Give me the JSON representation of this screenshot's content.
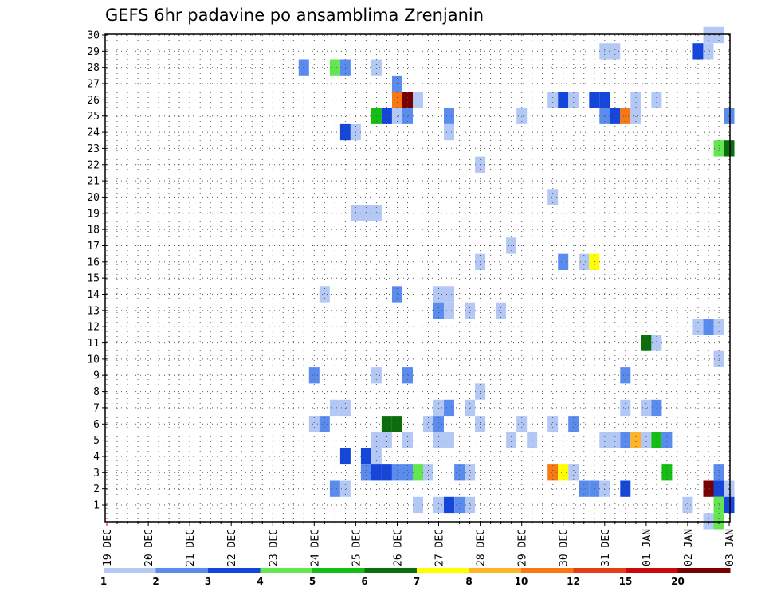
{
  "chart_data": {
    "type": "heatmap",
    "title": "GEFS 6hr padavine po ansamblima Zrenjanin",
    "xlabel": "",
    "ylabel": "",
    "x_ticks": [
      "19 DEC",
      "20 DEC",
      "21 DEC",
      "22 DEC",
      "23 DEC",
      "24 DEC",
      "25 DEC",
      "26 DEC",
      "27 DEC",
      "28 DEC",
      "29 DEC",
      "30 DEC",
      "31 DEC",
      "01 JAN",
      "02 JAN",
      "03 JAN"
    ],
    "x_range_steps": [
      0,
      60
    ],
    "y_ticks": [
      1,
      2,
      3,
      4,
      5,
      6,
      7,
      8,
      9,
      10,
      11,
      12,
      13,
      14,
      15,
      16,
      17,
      18,
      19,
      20,
      21,
      22,
      23,
      24,
      25,
      26,
      27,
      28,
      29,
      30
    ],
    "y_range": [
      0,
      30
    ],
    "colorbar": {
      "labels": [
        "1",
        "2",
        "3",
        "4",
        "5",
        "6",
        "7",
        "8",
        "10",
        "12",
        "15",
        "20"
      ],
      "colors": [
        "#b4c8f5",
        "#5a8cf0",
        "#1446dc",
        "#64e650",
        "#14be14",
        "#0a6e0a",
        "#ffff00",
        "#ffb428",
        "#fa7814",
        "#e63c14",
        "#c80a0a",
        "#780000"
      ]
    },
    "cell_value_unit": "mm / 6h (class index into colorbar)",
    "cells_note": "each cell: step index from 19 DEC 00z (6h steps), ensemble member (1-30), class index (0=1-2 ... 11=>=20)",
    "cells": [
      {
        "t": 58,
        "m": 30,
        "c": 0
      },
      {
        "t": 59,
        "m": 30,
        "c": 0
      },
      {
        "t": 48,
        "m": 29,
        "c": 0
      },
      {
        "t": 49,
        "m": 29,
        "c": 0
      },
      {
        "t": 57,
        "m": 29,
        "c": 2
      },
      {
        "t": 58,
        "m": 29,
        "c": 0
      },
      {
        "t": 19,
        "m": 28,
        "c": 1
      },
      {
        "t": 22,
        "m": 28,
        "c": 3
      },
      {
        "t": 23,
        "m": 28,
        "c": 1
      },
      {
        "t": 26,
        "m": 28,
        "c": 0
      },
      {
        "t": 28,
        "m": 27,
        "c": 1
      },
      {
        "t": 28,
        "m": 26,
        "c": 8
      },
      {
        "t": 29,
        "m": 26,
        "c": 11
      },
      {
        "t": 30,
        "m": 26,
        "c": 0
      },
      {
        "t": 43,
        "m": 26,
        "c": 0
      },
      {
        "t": 44,
        "m": 26,
        "c": 2
      },
      {
        "t": 45,
        "m": 26,
        "c": 0
      },
      {
        "t": 47,
        "m": 26,
        "c": 2
      },
      {
        "t": 48,
        "m": 26,
        "c": 2
      },
      {
        "t": 51,
        "m": 26,
        "c": 0
      },
      {
        "t": 53,
        "m": 26,
        "c": 0
      },
      {
        "t": 26,
        "m": 25,
        "c": 4
      },
      {
        "t": 27,
        "m": 25,
        "c": 2
      },
      {
        "t": 28,
        "m": 25,
        "c": 0
      },
      {
        "t": 29,
        "m": 25,
        "c": 1
      },
      {
        "t": 33,
        "m": 25,
        "c": 1
      },
      {
        "t": 40,
        "m": 25,
        "c": 0
      },
      {
        "t": 48,
        "m": 25,
        "c": 1
      },
      {
        "t": 49,
        "m": 25,
        "c": 2
      },
      {
        "t": 50,
        "m": 25,
        "c": 8
      },
      {
        "t": 51,
        "m": 25,
        "c": 0
      },
      {
        "t": 60,
        "m": 25,
        "c": 1
      },
      {
        "t": 23,
        "m": 24,
        "c": 2
      },
      {
        "t": 24,
        "m": 24,
        "c": 0
      },
      {
        "t": 33,
        "m": 24,
        "c": 0
      },
      {
        "t": 59,
        "m": 23,
        "c": 3
      },
      {
        "t": 60,
        "m": 23,
        "c": 5
      },
      {
        "t": 36,
        "m": 22,
        "c": 0
      },
      {
        "t": 43,
        "m": 20,
        "c": 0
      },
      {
        "t": 24,
        "m": 19,
        "c": 0
      },
      {
        "t": 25,
        "m": 19,
        "c": 0
      },
      {
        "t": 26,
        "m": 19,
        "c": 0
      },
      {
        "t": 39,
        "m": 17,
        "c": 0
      },
      {
        "t": 36,
        "m": 16,
        "c": 0
      },
      {
        "t": 44,
        "m": 16,
        "c": 1
      },
      {
        "t": 46,
        "m": 16,
        "c": 0
      },
      {
        "t": 47,
        "m": 16,
        "c": 6
      },
      {
        "t": 21,
        "m": 14,
        "c": 0
      },
      {
        "t": 28,
        "m": 14,
        "c": 1
      },
      {
        "t": 32,
        "m": 14,
        "c": 0
      },
      {
        "t": 33,
        "m": 14,
        "c": 0
      },
      {
        "t": 32,
        "m": 13,
        "c": 1
      },
      {
        "t": 33,
        "m": 13,
        "c": 0
      },
      {
        "t": 35,
        "m": 13,
        "c": 0
      },
      {
        "t": 38,
        "m": 13,
        "c": 0
      },
      {
        "t": 57,
        "m": 12,
        "c": 0
      },
      {
        "t": 58,
        "m": 12,
        "c": 1
      },
      {
        "t": 59,
        "m": 12,
        "c": 0
      },
      {
        "t": 52,
        "m": 11,
        "c": 5
      },
      {
        "t": 53,
        "m": 11,
        "c": 0
      },
      {
        "t": 59,
        "m": 10,
        "c": 0
      },
      {
        "t": 20,
        "m": 9,
        "c": 1
      },
      {
        "t": 26,
        "m": 9,
        "c": 0
      },
      {
        "t": 29,
        "m": 9,
        "c": 1
      },
      {
        "t": 50,
        "m": 9,
        "c": 1
      },
      {
        "t": 36,
        "m": 8,
        "c": 0
      },
      {
        "t": 22,
        "m": 7,
        "c": 0
      },
      {
        "t": 23,
        "m": 7,
        "c": 0
      },
      {
        "t": 32,
        "m": 7,
        "c": 0
      },
      {
        "t": 33,
        "m": 7,
        "c": 1
      },
      {
        "t": 35,
        "m": 7,
        "c": 0
      },
      {
        "t": 50,
        "m": 7,
        "c": 0
      },
      {
        "t": 52,
        "m": 7,
        "c": 0
      },
      {
        "t": 53,
        "m": 7,
        "c": 1
      },
      {
        "t": 20,
        "m": 6,
        "c": 0
      },
      {
        "t": 21,
        "m": 6,
        "c": 1
      },
      {
        "t": 27,
        "m": 6,
        "c": 5
      },
      {
        "t": 28,
        "m": 6,
        "c": 5
      },
      {
        "t": 31,
        "m": 6,
        "c": 0
      },
      {
        "t": 32,
        "m": 6,
        "c": 1
      },
      {
        "t": 36,
        "m": 6,
        "c": 0
      },
      {
        "t": 40,
        "m": 6,
        "c": 0
      },
      {
        "t": 43,
        "m": 6,
        "c": 0
      },
      {
        "t": 45,
        "m": 6,
        "c": 1
      },
      {
        "t": 26,
        "m": 5,
        "c": 0
      },
      {
        "t": 27,
        "m": 5,
        "c": 0
      },
      {
        "t": 29,
        "m": 5,
        "c": 0
      },
      {
        "t": 32,
        "m": 5,
        "c": 0
      },
      {
        "t": 33,
        "m": 5,
        "c": 0
      },
      {
        "t": 39,
        "m": 5,
        "c": 0
      },
      {
        "t": 41,
        "m": 5,
        "c": 0
      },
      {
        "t": 48,
        "m": 5,
        "c": 0
      },
      {
        "t": 49,
        "m": 5,
        "c": 0
      },
      {
        "t": 50,
        "m": 5,
        "c": 1
      },
      {
        "t": 51,
        "m": 5,
        "c": 7
      },
      {
        "t": 52,
        "m": 5,
        "c": 0
      },
      {
        "t": 53,
        "m": 5,
        "c": 4
      },
      {
        "t": 54,
        "m": 5,
        "c": 1
      },
      {
        "t": 23,
        "m": 4,
        "c": 2
      },
      {
        "t": 25,
        "m": 4,
        "c": 2
      },
      {
        "t": 26,
        "m": 4,
        "c": 0
      },
      {
        "t": 25,
        "m": 3,
        "c": 1
      },
      {
        "t": 26,
        "m": 3,
        "c": 2
      },
      {
        "t": 27,
        "m": 3,
        "c": 2
      },
      {
        "t": 28,
        "m": 3,
        "c": 1
      },
      {
        "t": 29,
        "m": 3,
        "c": 1
      },
      {
        "t": 30,
        "m": 3,
        "c": 3
      },
      {
        "t": 31,
        "m": 3,
        "c": 0
      },
      {
        "t": 34,
        "m": 3,
        "c": 1
      },
      {
        "t": 35,
        "m": 3,
        "c": 0
      },
      {
        "t": 43,
        "m": 3,
        "c": 8
      },
      {
        "t": 44,
        "m": 3,
        "c": 6
      },
      {
        "t": 45,
        "m": 3,
        "c": 0
      },
      {
        "t": 54,
        "m": 3,
        "c": 4
      },
      {
        "t": 59,
        "m": 3,
        "c": 1
      },
      {
        "t": 22,
        "m": 2,
        "c": 1
      },
      {
        "t": 23,
        "m": 2,
        "c": 0
      },
      {
        "t": 46,
        "m": 2,
        "c": 1
      },
      {
        "t": 47,
        "m": 2,
        "c": 1
      },
      {
        "t": 48,
        "m": 2,
        "c": 0
      },
      {
        "t": 50,
        "m": 2,
        "c": 2
      },
      {
        "t": 58,
        "m": 2,
        "c": 11
      },
      {
        "t": 59,
        "m": 2,
        "c": 2
      },
      {
        "t": 60,
        "m": 2,
        "c": 0
      },
      {
        "t": 30,
        "m": 1,
        "c": 0
      },
      {
        "t": 32,
        "m": 1,
        "c": 0
      },
      {
        "t": 33,
        "m": 1,
        "c": 2
      },
      {
        "t": 34,
        "m": 1,
        "c": 1
      },
      {
        "t": 35,
        "m": 1,
        "c": 0
      },
      {
        "t": 56,
        "m": 1,
        "c": 0
      },
      {
        "t": 59,
        "m": 1,
        "c": 3
      },
      {
        "t": 60,
        "m": 1,
        "c": 2
      },
      {
        "t": 58,
        "m": 0,
        "c": 0
      },
      {
        "t": 59,
        "m": 0,
        "c": 3
      }
    ]
  }
}
